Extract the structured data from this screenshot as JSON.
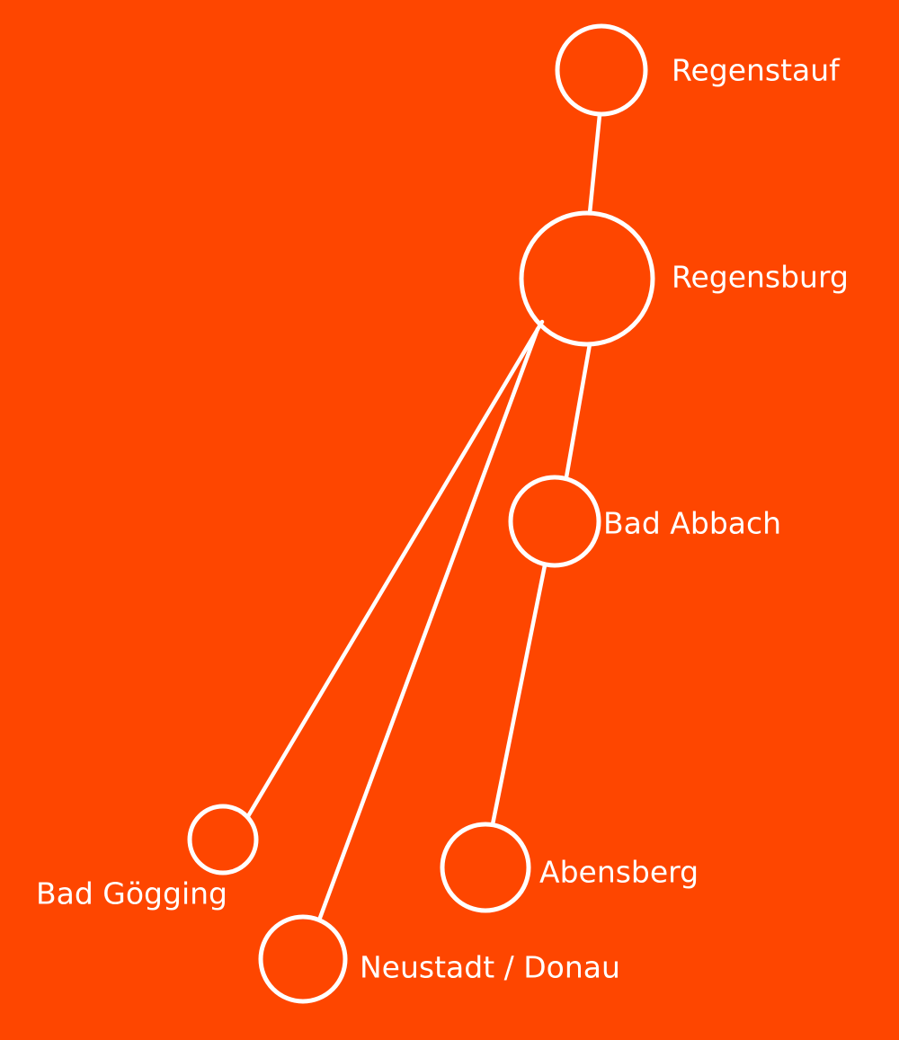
{
  "background_color": "#fe4600",
  "line_color": "#ffffff",
  "nodes": {
    "regenstauf": {
      "label": "Regenstauf"
    },
    "regensburg": {
      "label": "Regensburg"
    },
    "bad_abbach": {
      "label": "Bad Abbach"
    },
    "bad_goegging": {
      "label": "Bad Gögging"
    },
    "abensberg": {
      "label": "Abensberg"
    },
    "neustadt": {
      "label": "Neustadt / Donau"
    }
  },
  "edges": [
    {
      "from": "regenstauf",
      "to": "regensburg"
    },
    {
      "from": "regensburg",
      "to": "bad_abbach"
    },
    {
      "from": "regensburg",
      "to": "bad_goegging"
    },
    {
      "from": "regensburg",
      "to": "neustadt"
    },
    {
      "from": "bad_abbach",
      "to": "abensberg"
    }
  ]
}
